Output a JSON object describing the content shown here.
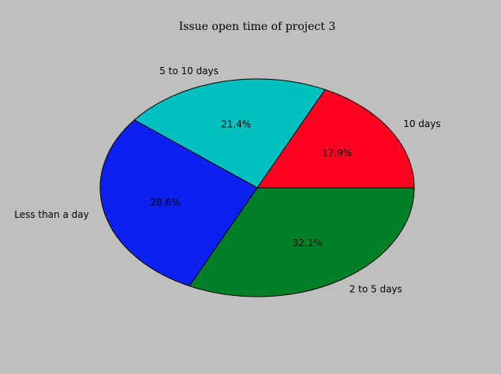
{
  "chart_data": {
    "type": "pie",
    "title": "Issue open time of project 3",
    "slices": [
      {
        "label": "10 days",
        "value": 17.9,
        "pct_label": "17.9%",
        "color": "#ff0022"
      },
      {
        "label": "5 to 10 days",
        "value": 21.4,
        "pct_label": "21.4%",
        "color": "#00bfbf"
      },
      {
        "label": "Less than a day",
        "value": 28.6,
        "pct_label": "28.6%",
        "color": "#0c20f0"
      },
      {
        "label": "2 to 5 days",
        "value": 32.1,
        "pct_label": "32.1%",
        "color": "#007f26"
      }
    ],
    "start_angle_deg": 0,
    "direction": "counterclockwise"
  },
  "colors": {
    "background": "#bfbfbf"
  }
}
